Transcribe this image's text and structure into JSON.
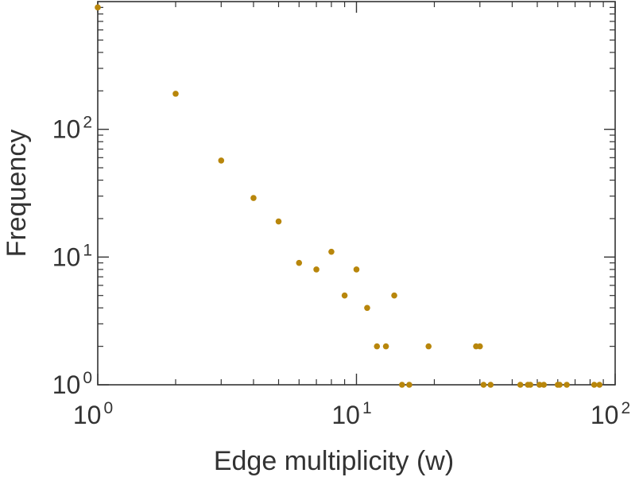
{
  "chart_data": {
    "type": "scatter",
    "title": "",
    "xlabel": "Edge multiplicity (w)",
    "ylabel": "Frequency",
    "xscale": "log",
    "yscale": "log",
    "xlim": [
      1,
      100
    ],
    "ylim": [
      1,
      1000
    ],
    "grid": false,
    "marker_color": "#b8860b",
    "x_ticks": [
      {
        "base": "10",
        "exp": "0",
        "value": 1
      },
      {
        "base": "10",
        "exp": "1",
        "value": 10
      },
      {
        "base": "10",
        "exp": "2",
        "value": 100
      }
    ],
    "y_ticks": [
      {
        "base": "10",
        "exp": "0",
        "value": 1
      },
      {
        "base": "10",
        "exp": "1",
        "value": 10
      },
      {
        "base": "10",
        "exp": "2",
        "value": 100
      }
    ],
    "points": [
      {
        "x": 1,
        "y": 900
      },
      {
        "x": 2,
        "y": 190
      },
      {
        "x": 3,
        "y": 57
      },
      {
        "x": 4,
        "y": 29
      },
      {
        "x": 5,
        "y": 19
      },
      {
        "x": 6,
        "y": 9
      },
      {
        "x": 7,
        "y": 8
      },
      {
        "x": 8,
        "y": 11
      },
      {
        "x": 9,
        "y": 5
      },
      {
        "x": 10,
        "y": 8
      },
      {
        "x": 11,
        "y": 4
      },
      {
        "x": 12,
        "y": 2
      },
      {
        "x": 13,
        "y": 2
      },
      {
        "x": 14,
        "y": 5
      },
      {
        "x": 15,
        "y": 1
      },
      {
        "x": 16,
        "y": 1
      },
      {
        "x": 19,
        "y": 2
      },
      {
        "x": 29,
        "y": 2
      },
      {
        "x": 30,
        "y": 2
      },
      {
        "x": 31,
        "y": 1
      },
      {
        "x": 33,
        "y": 1
      },
      {
        "x": 43,
        "y": 1
      },
      {
        "x": 46,
        "y": 1
      },
      {
        "x": 47,
        "y": 1
      },
      {
        "x": 51,
        "y": 1
      },
      {
        "x": 53,
        "y": 1
      },
      {
        "x": 60,
        "y": 1
      },
      {
        "x": 61,
        "y": 1
      },
      {
        "x": 65,
        "y": 1
      },
      {
        "x": 83,
        "y": 1
      },
      {
        "x": 87,
        "y": 1
      }
    ]
  }
}
